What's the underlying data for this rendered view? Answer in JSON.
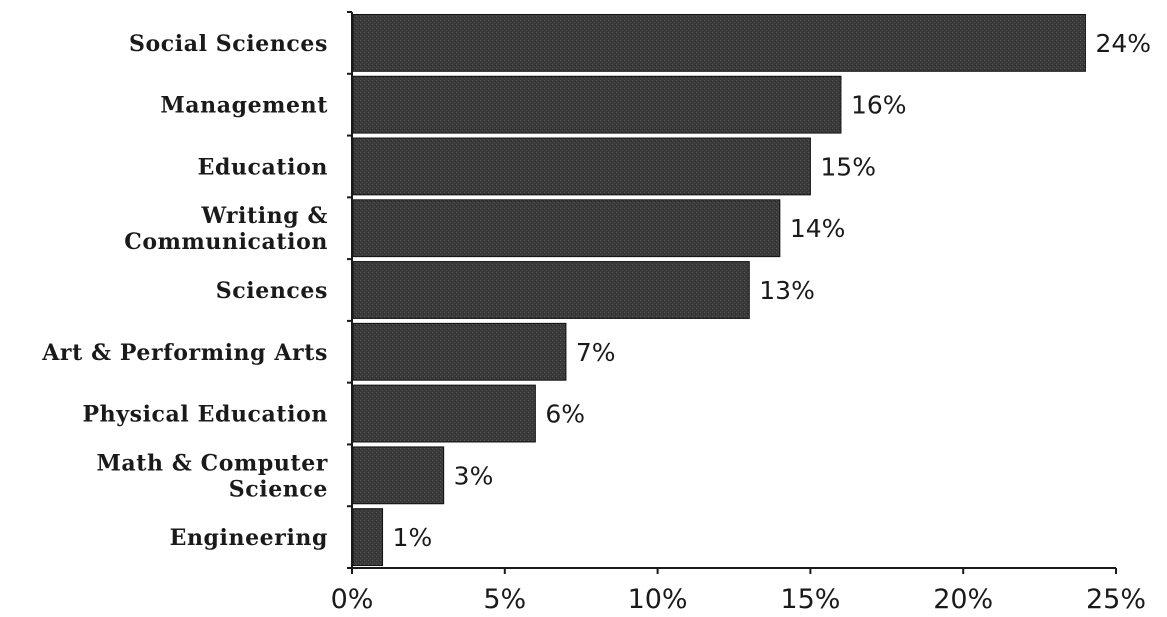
{
  "chart_data": {
    "type": "bar",
    "orientation": "horizontal",
    "categories": [
      [
        "Social Sciences"
      ],
      [
        "Management"
      ],
      [
        "Education"
      ],
      [
        "Writing &",
        "Communication"
      ],
      [
        "Sciences"
      ],
      [
        "Art & Performing Arts"
      ],
      [
        "Physical Education"
      ],
      [
        "Math & Computer",
        "Science"
      ],
      [
        "Engineering"
      ]
    ],
    "values": [
      24,
      16,
      15,
      14,
      13,
      7,
      6,
      3,
      1
    ],
    "data_labels": [
      "24%",
      "16%",
      "15%",
      "14%",
      "13%",
      "7%",
      "6%",
      "3%",
      "1%"
    ],
    "xlim": [
      0,
      25
    ],
    "xticks": [
      0,
      5,
      10,
      15,
      20,
      25
    ],
    "xtick_labels": [
      "0%",
      "5%",
      "10%",
      "15%",
      "20%",
      "25%"
    ],
    "title": "",
    "xlabel": "",
    "ylabel": "",
    "grid": false,
    "legend": "none",
    "bar_color": "#3a3a3a"
  }
}
